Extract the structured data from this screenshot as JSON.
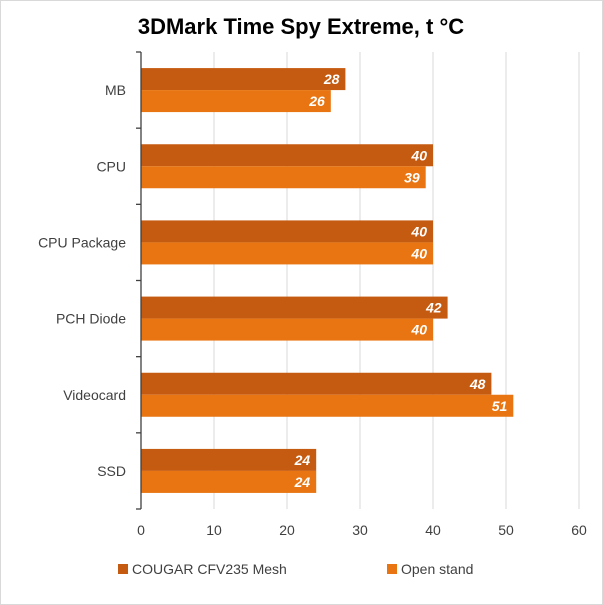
{
  "chart_data": {
    "type": "bar",
    "orientation": "horizontal",
    "title": "3DMark Time Spy Extreme, t °C",
    "categories": [
      "MB",
      "CPU",
      "CPU Package",
      "PCH Diode",
      "Videocard",
      "SSD"
    ],
    "series": [
      {
        "name": "COUGAR CFV235 Mesh",
        "color": "#c55a11",
        "values": [
          28,
          40,
          40,
          42,
          48,
          24
        ]
      },
      {
        "name": "Open stand",
        "color": "#e87511",
        "values": [
          26,
          39,
          40,
          40,
          51,
          24
        ]
      }
    ],
    "xlim": [
      0,
      60
    ],
    "xticks": [
      "0",
      "10",
      "20",
      "30",
      "40",
      "50",
      "60"
    ],
    "grid": "vertical",
    "legend_position": "bottom",
    "data_labels": true
  }
}
